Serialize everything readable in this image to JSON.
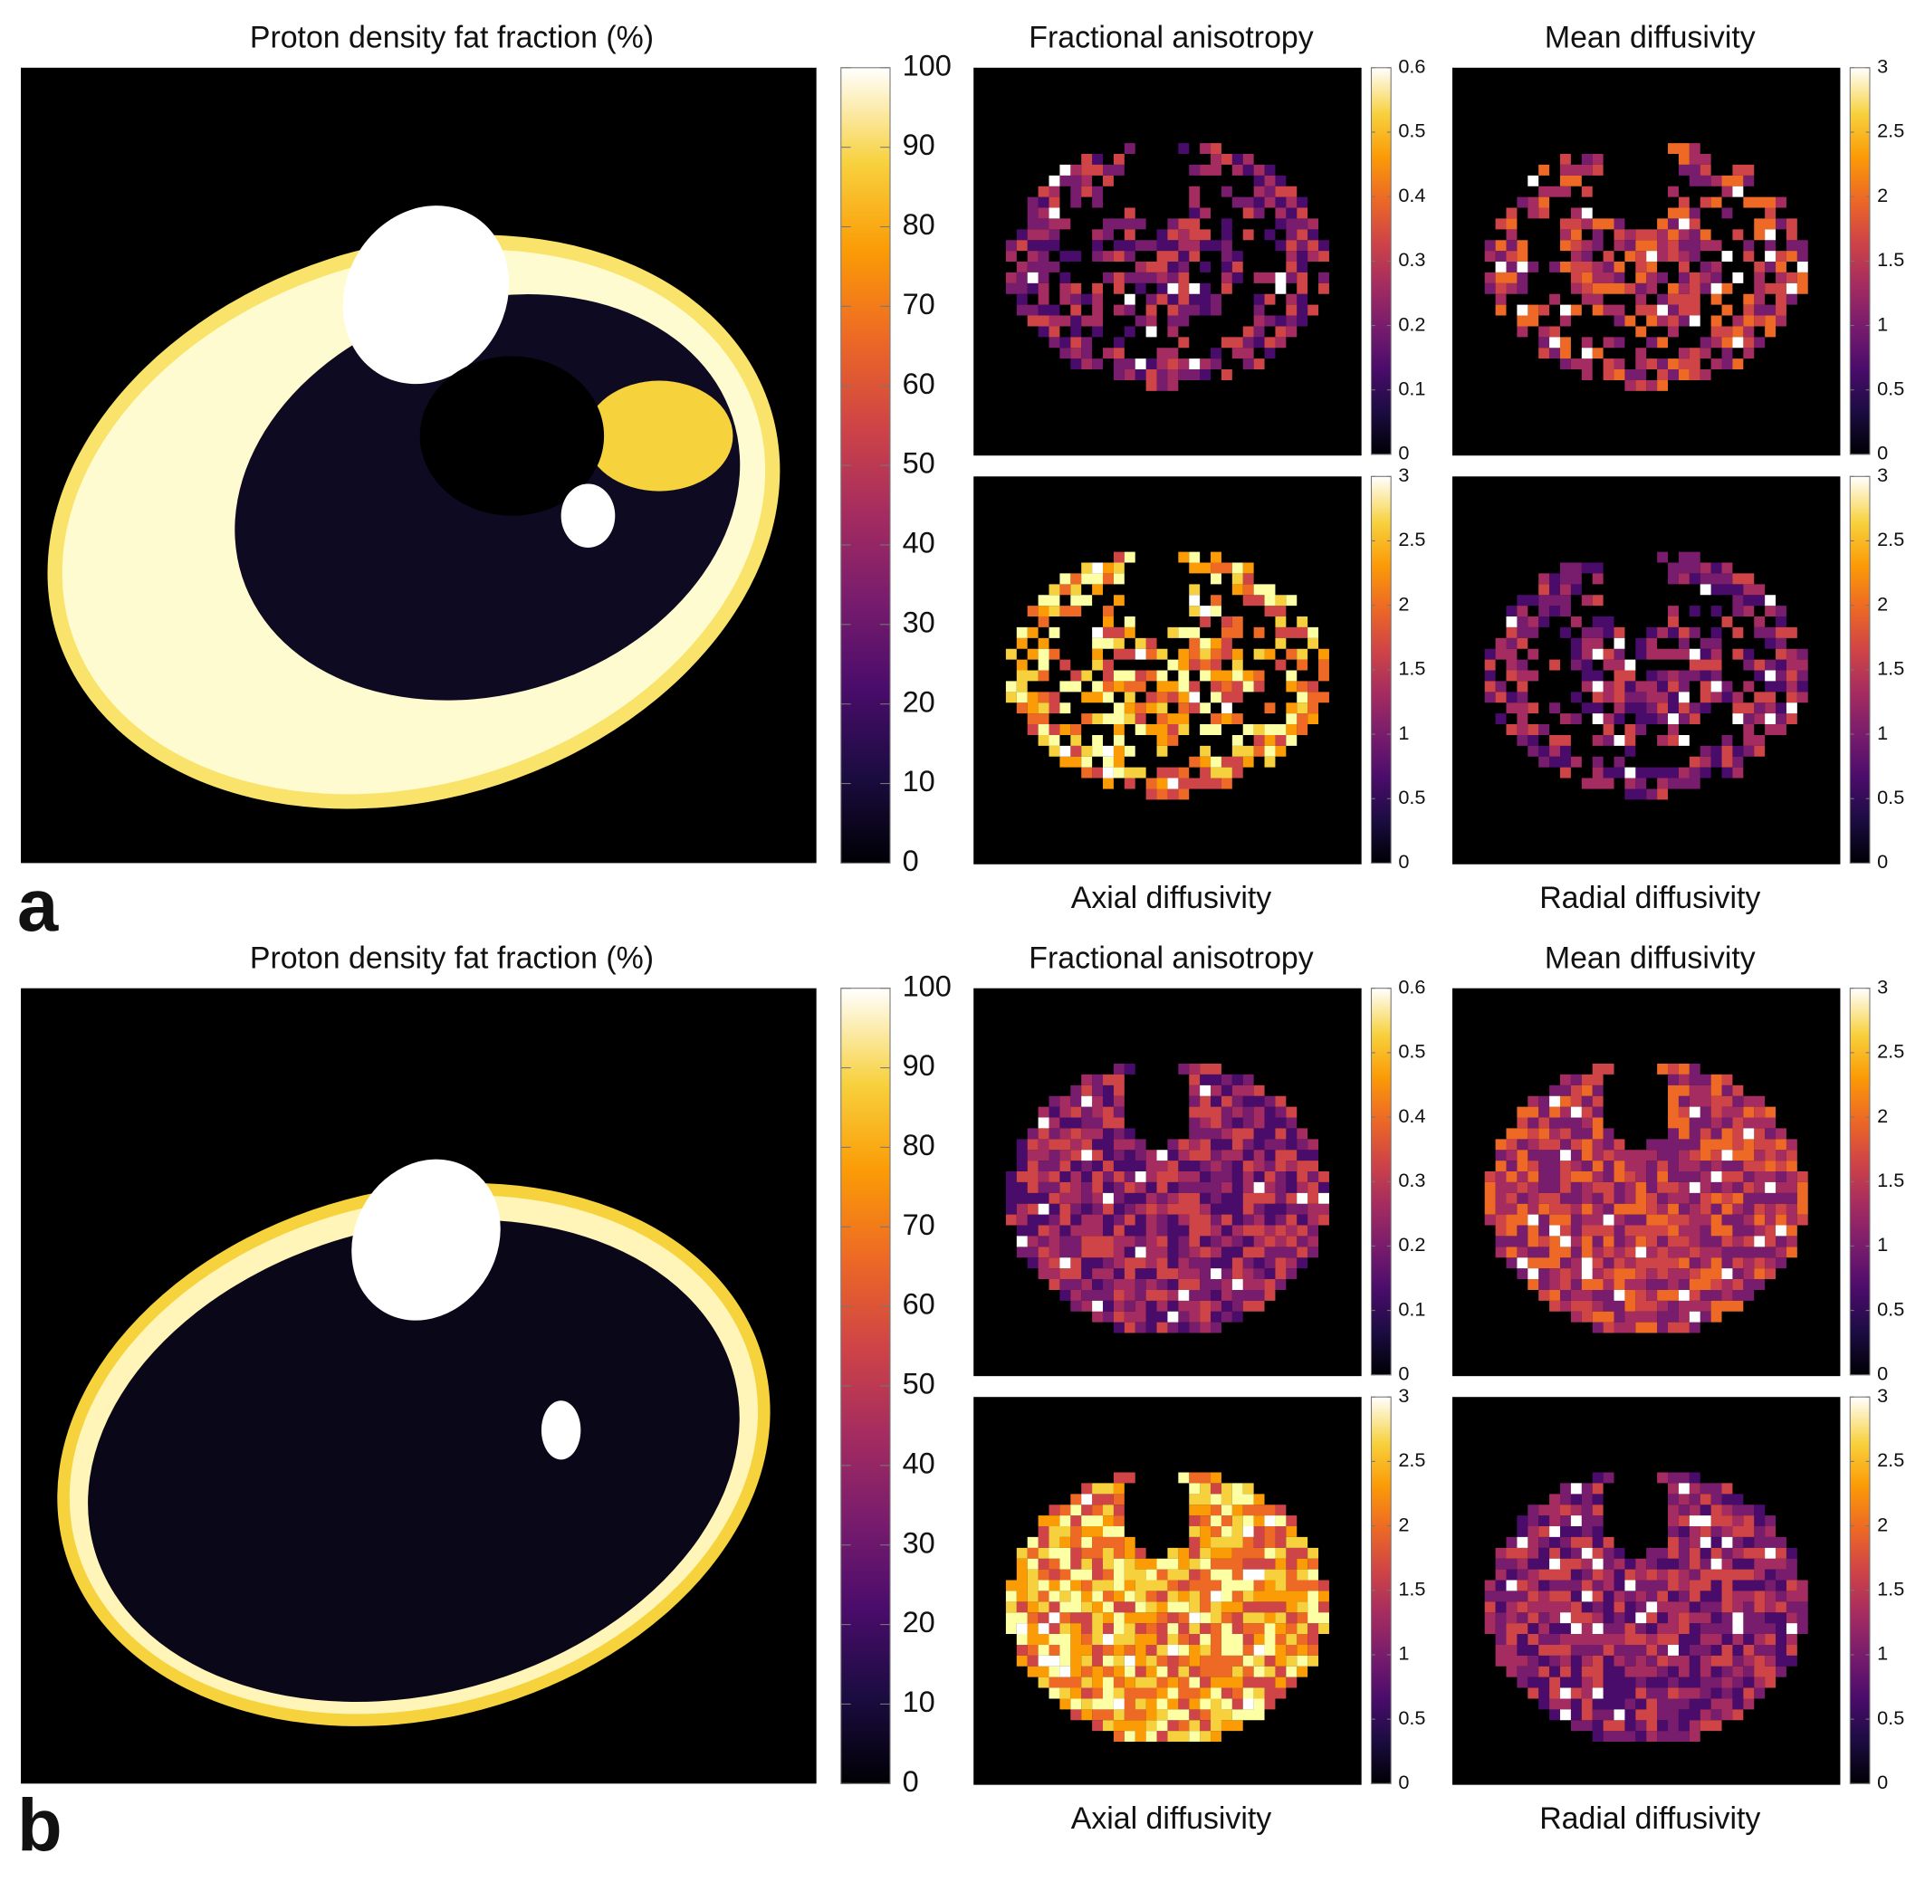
{
  "panels": [
    {
      "label": "a",
      "pdff": {
        "title": "Proton density fat fraction (%)",
        "range": [
          0,
          100
        ],
        "ticks": [
          0,
          10,
          20,
          30,
          40,
          50,
          60,
          70,
          80,
          90,
          100
        ]
      },
      "maps": [
        {
          "title": "Fractional anisotropy",
          "range": [
            0,
            0.6
          ],
          "ticks": [
            0,
            0.1,
            0.2,
            0.3,
            0.4,
            0.5,
            0.6
          ]
        },
        {
          "title": "Mean diffusivity",
          "range": [
            0,
            3
          ],
          "ticks": [
            0,
            0.5,
            1,
            1.5,
            2,
            2.5,
            3
          ]
        },
        {
          "title": "Axial diffusivity",
          "range": [
            0,
            3
          ],
          "ticks": [
            0,
            0.5,
            1,
            1.5,
            2,
            2.5,
            3
          ]
        },
        {
          "title": "Radial diffusivity",
          "range": [
            0,
            3
          ],
          "ticks": [
            0,
            0.5,
            1,
            1.5,
            2,
            2.5,
            3
          ]
        }
      ]
    },
    {
      "label": "b",
      "pdff": {
        "title": "Proton density fat fraction (%)",
        "range": [
          0,
          100
        ],
        "ticks": [
          0,
          10,
          20,
          30,
          40,
          50,
          60,
          70,
          80,
          90,
          100
        ]
      },
      "maps": [
        {
          "title": "Fractional anisotropy",
          "range": [
            0,
            0.6
          ],
          "ticks": [
            0,
            0.1,
            0.2,
            0.3,
            0.4,
            0.5,
            0.6
          ]
        },
        {
          "title": "Mean diffusivity",
          "range": [
            0,
            3
          ],
          "ticks": [
            0,
            0.5,
            1,
            1.5,
            2,
            2.5,
            3
          ]
        },
        {
          "title": "Axial diffusivity",
          "range": [
            0,
            3
          ],
          "ticks": [
            0,
            0.5,
            1,
            1.5,
            2,
            2.5,
            3
          ]
        },
        {
          "title": "Radial diffusivity",
          "range": [
            0,
            3
          ],
          "ticks": [
            0,
            0.5,
            1,
            1.5,
            2,
            2.5,
            3
          ]
        }
      ]
    }
  ]
}
